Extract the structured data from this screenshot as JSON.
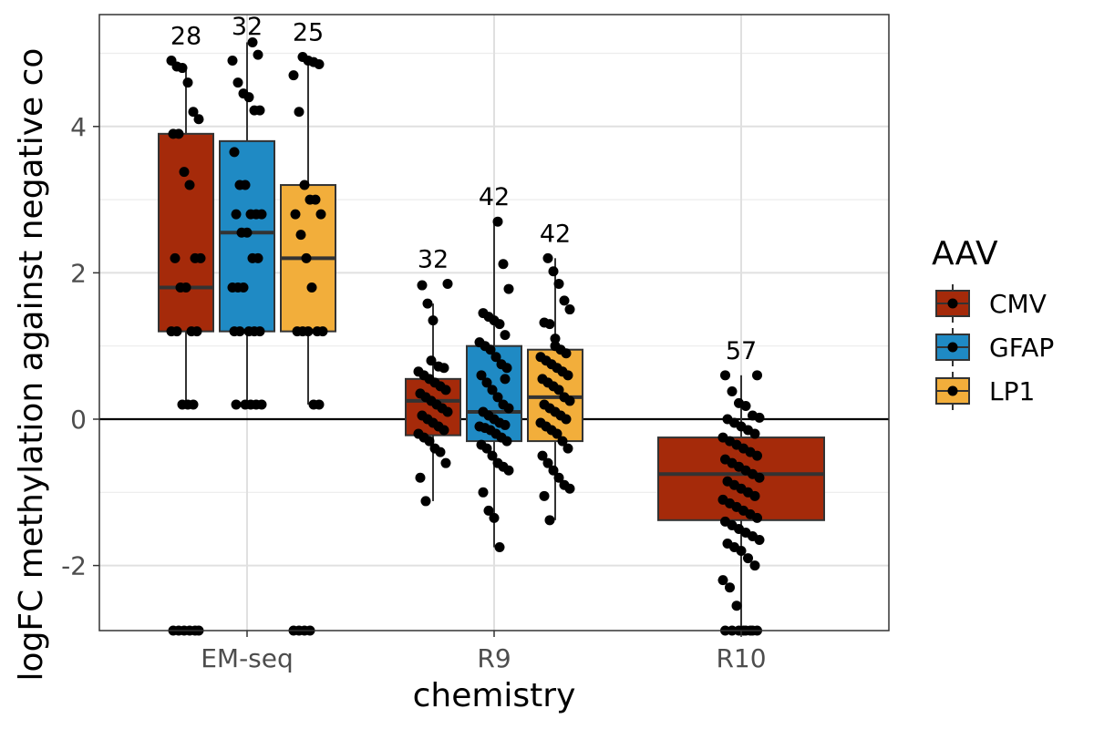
{
  "chart_data": {
    "type": "box",
    "xlabel": "chemistry",
    "ylabel": "logFC methylation against negative co",
    "categories": [
      "EM-seq",
      "R9",
      "R10"
    ],
    "ylim": [
      -2.9,
      5.5
    ],
    "yticks": [
      -2,
      0,
      2,
      4
    ],
    "ytick_labels": [
      "-2",
      "0",
      "2",
      "4"
    ],
    "reference_line_y": 0,
    "grid": true,
    "legend": {
      "title": "AAV",
      "placement": "right",
      "entries": [
        {
          "name": "CMV",
          "color": "#A52A0A"
        },
        {
          "name": "GFAP",
          "color": "#1F8AC4"
        },
        {
          "name": "LP1",
          "color": "#F2AE3B"
        }
      ]
    },
    "boxes": [
      {
        "category": "EM-seq",
        "group": "CMV",
        "q1": 1.2,
        "median": 1.8,
        "q3": 3.9,
        "whisker_low": 0.2,
        "whisker_high": 4.8,
        "count_label": "28",
        "points": [
          4.9,
          4.82,
          4.8,
          4.6,
          4.2,
          4.1,
          3.9,
          3.9,
          3.38,
          3.2,
          2.2,
          2.2,
          2.2,
          1.8,
          1.8,
          1.2,
          1.2,
          1.2,
          1.2,
          0.2,
          0.2,
          0.2,
          -2.9,
          -2.9,
          -2.9,
          -2.9,
          -2.9,
          -2.9
        ]
      },
      {
        "category": "EM-seq",
        "group": "GFAP",
        "q1": 1.2,
        "median": 2.55,
        "q3": 3.8,
        "whisker_low": 0.2,
        "whisker_high": 5.15,
        "count_label": "32",
        "points": [
          5.15,
          4.98,
          4.9,
          4.6,
          4.45,
          4.4,
          4.22,
          4.22,
          3.65,
          3.2,
          3.2,
          2.8,
          2.8,
          2.8,
          2.8,
          2.55,
          2.55,
          2.2,
          2.2,
          1.8,
          1.8,
          1.8,
          1.2,
          1.2,
          1.2,
          1.2,
          1.2,
          0.2,
          0.2,
          0.2,
          0.2,
          0.2
        ]
      },
      {
        "category": "EM-seq",
        "group": "LP1",
        "q1": 1.2,
        "median": 2.2,
        "q3": 3.2,
        "whisker_low": 0.2,
        "whisker_high": 4.95,
        "count_label": "25",
        "points": [
          4.95,
          4.9,
          4.88,
          4.85,
          4.7,
          4.2,
          3.2,
          3.0,
          3.0,
          2.8,
          2.8,
          2.52,
          2.2,
          1.8,
          1.2,
          1.2,
          1.2,
          1.2,
          1.2,
          0.2,
          0.2,
          -2.9,
          -2.9,
          -2.9,
          -2.9
        ]
      },
      {
        "category": "R9",
        "group": "CMV",
        "q1": -0.22,
        "median": 0.25,
        "q3": 0.55,
        "whisker_low": -1.12,
        "whisker_high": 1.58,
        "count_label": "32",
        "points": [
          1.85,
          1.83,
          1.58,
          1.35,
          0.72,
          0.7,
          0.65,
          0.6,
          0.55,
          0.5,
          0.45,
          0.4,
          0.35,
          0.3,
          0.25,
          0.2,
          0.15,
          0.1,
          0.05,
          0.0,
          -0.05,
          -0.1,
          -0.15,
          -0.2,
          -0.25,
          -0.3,
          -0.4,
          -0.45,
          -0.6,
          -0.8,
          -1.12,
          0.8
        ]
      },
      {
        "category": "R9",
        "group": "GFAP",
        "q1": -0.3,
        "median": 0.1,
        "q3": 1.0,
        "whisker_low": -1.75,
        "whisker_high": 2.7,
        "count_label": "42",
        "points": [
          2.7,
          2.12,
          1.78,
          1.45,
          1.4,
          1.35,
          1.3,
          1.15,
          1.05,
          1.0,
          0.95,
          0.85,
          0.75,
          0.7,
          0.6,
          0.5,
          0.4,
          0.3,
          0.2,
          0.15,
          0.1,
          0.05,
          0.0,
          -0.05,
          -0.08,
          -0.1,
          -0.12,
          -0.15,
          -0.2,
          -0.25,
          -0.3,
          -0.35,
          -0.4,
          -0.5,
          -0.6,
          -0.65,
          -0.7,
          -1.0,
          -1.25,
          -1.35,
          -1.75,
          0.55
        ]
      },
      {
        "category": "R9",
        "group": "LP1",
        "q1": -0.3,
        "median": 0.3,
        "q3": 0.95,
        "whisker_low": -1.38,
        "whisker_high": 2.2,
        "count_label": "42",
        "points": [
          2.2,
          2.02,
          1.85,
          1.62,
          1.5,
          1.32,
          1.3,
          1.0,
          0.95,
          0.9,
          0.85,
          0.8,
          0.75,
          0.7,
          0.65,
          0.6,
          0.55,
          0.5,
          0.45,
          0.4,
          0.3,
          0.25,
          0.2,
          0.15,
          0.1,
          0.05,
          0.0,
          -0.05,
          -0.1,
          -0.15,
          -0.2,
          -0.3,
          -0.4,
          -0.5,
          -0.6,
          -0.7,
          -0.8,
          -0.9,
          -0.95,
          -1.05,
          -1.38,
          1.1
        ]
      },
      {
        "category": "R10",
        "group": "CMV",
        "q1": -1.38,
        "median": -0.75,
        "q3": -0.25,
        "whisker_low": -2.9,
        "whisker_high": 0.6,
        "count_label": "57",
        "points": [
          0.6,
          0.6,
          0.38,
          0.22,
          0.18,
          0.05,
          0.02,
          0.0,
          -0.05,
          -0.1,
          -0.15,
          -0.2,
          -0.25,
          -0.3,
          -0.35,
          -0.4,
          -0.45,
          -0.5,
          -0.55,
          -0.6,
          -0.65,
          -0.7,
          -0.75,
          -0.8,
          -0.85,
          -0.9,
          -0.95,
          -1.0,
          -1.05,
          -1.1,
          -1.15,
          -1.2,
          -1.25,
          -1.3,
          -1.35,
          -1.4,
          -1.45,
          -1.5,
          -1.55,
          -1.6,
          -1.65,
          -1.7,
          -1.75,
          -1.8,
          -1.9,
          -2.0,
          -2.2,
          -2.3,
          -2.55,
          -2.9,
          -2.9,
          -2.9,
          -2.9,
          -2.9,
          -2.9,
          -2.9,
          -2.9
        ]
      }
    ]
  }
}
